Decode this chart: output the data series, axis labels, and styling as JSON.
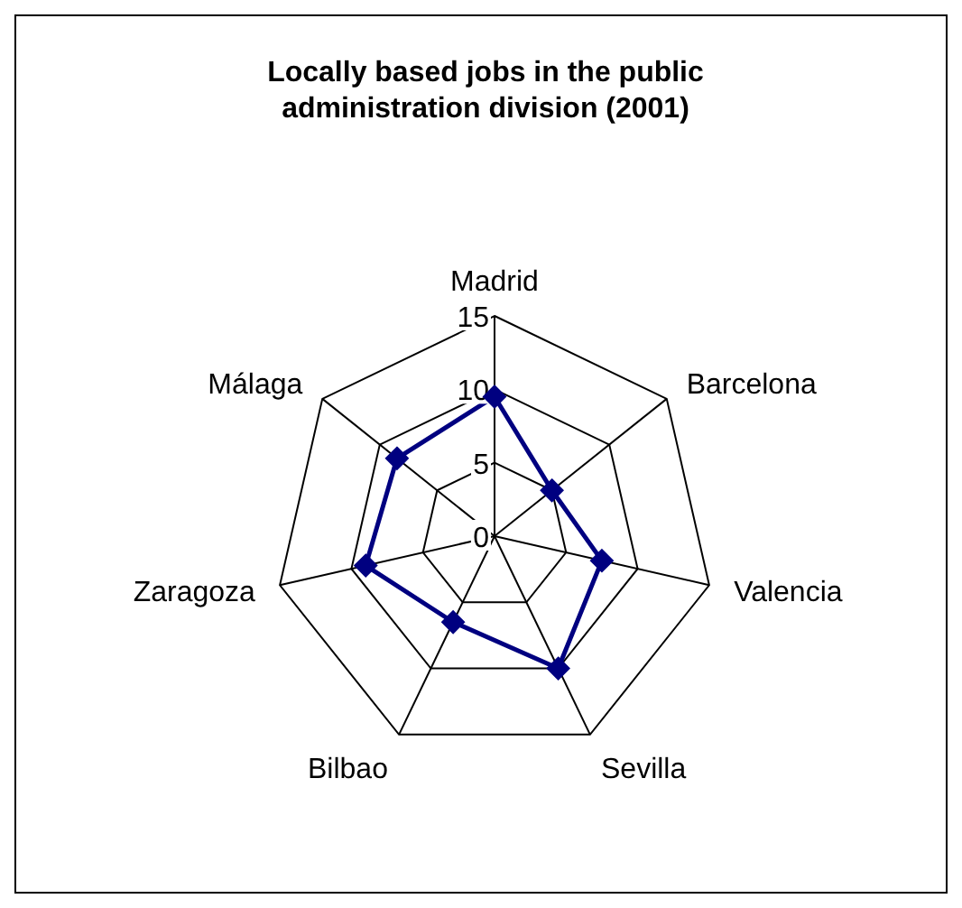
{
  "chart_data": {
    "type": "radar",
    "title": "Locally based jobs in the public administration division (2001)",
    "categories": [
      "Madrid",
      "Barcelona",
      "Valencia",
      "Sevilla",
      "Bilbao",
      "Zaragoza",
      "Málaga"
    ],
    "series": [
      {
        "color": "#000080",
        "values": [
          9.5,
          5,
          7.5,
          10,
          6.5,
          9,
          8.5
        ]
      }
    ],
    "ylim": [
      0,
      15
    ],
    "yticks": [
      0,
      5,
      10,
      15
    ],
    "grid": true,
    "marker": "diamond",
    "line_style": "solid"
  }
}
